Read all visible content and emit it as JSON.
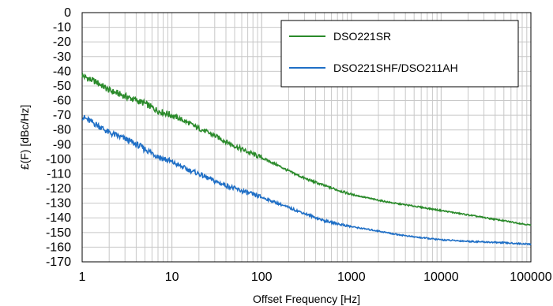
{
  "chart_data": {
    "type": "line",
    "xlabel": "Offset Frequency [Hz]",
    "ylabel": "£(F) [dBc/Hz]",
    "xscale": "log",
    "xlim": [
      1,
      100000
    ],
    "ylim": [
      -170,
      0
    ],
    "xticks": [
      "1",
      "10",
      "100",
      "1000",
      "10000",
      "100000"
    ],
    "yticks": [
      "0",
      "-10",
      "-20",
      "-30",
      "-40",
      "-50",
      "-60",
      "-70",
      "-80",
      "-90",
      "-100",
      "-110",
      "-120",
      "-130",
      "-140",
      "-150",
      "-160",
      "-170"
    ],
    "grid": true,
    "legend_position": "top-right",
    "series": [
      {
        "name": "DSO221SR",
        "color": "#2a8a2a",
        "x": [
          1,
          1.5,
          2,
          3,
          5,
          7,
          10,
          15,
          20,
          30,
          50,
          70,
          100,
          150,
          200,
          300,
          500,
          700,
          1000,
          2000,
          3000,
          5000,
          10000,
          20000,
          50000,
          100000
        ],
        "y": [
          -43,
          -48,
          -53,
          -57,
          -62,
          -67,
          -70,
          -75,
          -79,
          -84,
          -91,
          -95,
          -99,
          -104,
          -108,
          -113,
          -118,
          -121,
          -124,
          -128,
          -130,
          -132,
          -135,
          -138,
          -142,
          -145
        ]
      },
      {
        "name": "DSO221SHF/DSO211AH",
        "color": "#1f6fc6",
        "x": [
          1,
          1.5,
          2,
          3,
          5,
          7,
          10,
          15,
          20,
          30,
          50,
          70,
          100,
          150,
          200,
          300,
          500,
          700,
          1000,
          2000,
          3000,
          5000,
          10000,
          20000,
          50000,
          100000
        ],
        "y": [
          -71,
          -77,
          -82,
          -86,
          -93,
          -98,
          -102,
          -107,
          -110,
          -115,
          -120,
          -123,
          -126,
          -130,
          -133,
          -137,
          -142,
          -144,
          -146,
          -149,
          -151,
          -153,
          -155,
          -156,
          -157,
          -158
        ]
      }
    ]
  }
}
